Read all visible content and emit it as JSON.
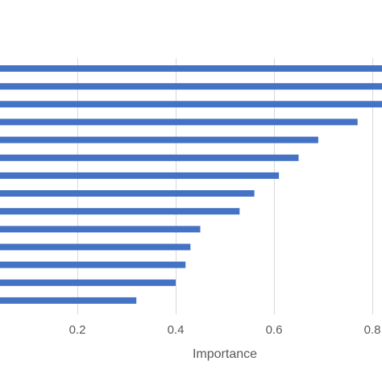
{
  "chart_data": {
    "type": "bar",
    "orientation": "horizontal",
    "values": [
      0.85,
      0.84,
      0.83,
      0.77,
      0.69,
      0.65,
      0.61,
      0.56,
      0.53,
      0.45,
      0.43,
      0.42,
      0.4,
      0.32
    ],
    "xlabel": "Importance",
    "xticks": [
      "0.2",
      "0.4",
      "0.6",
      "0.8"
    ],
    "xtick_values": [
      0.2,
      0.4,
      0.6,
      0.8
    ],
    "grid": "vertical",
    "color": "#4472C4",
    "gridline_color": "#d9d9d9"
  }
}
